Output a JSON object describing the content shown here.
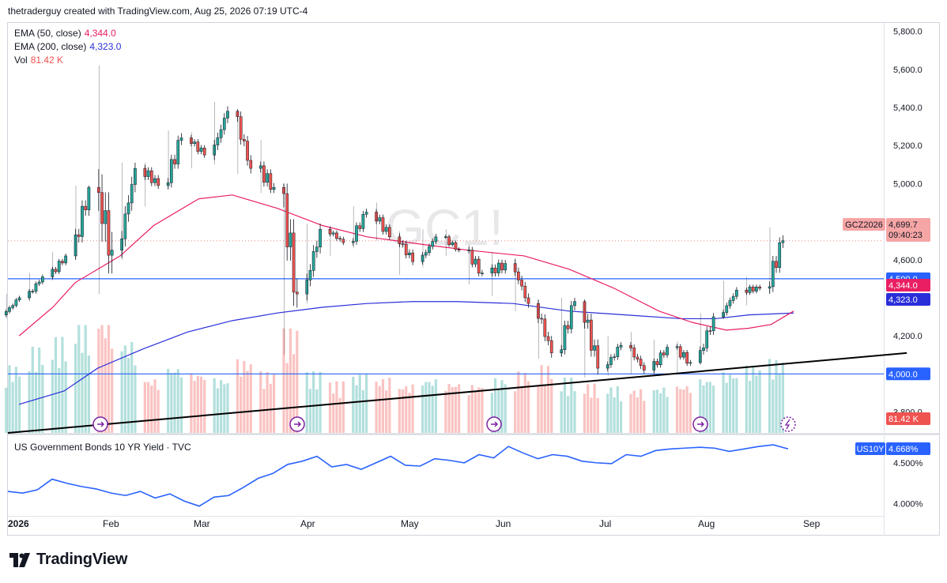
{
  "header": {
    "attribution": "thetraderguy created with TradingView.com, Aug 25, 2026 07:19 UTC-4"
  },
  "legend": {
    "ema50_label": "EMA (50, close)",
    "ema50_value": "4,344.0",
    "ema200_label": "EMA (200, close)",
    "ema200_value": "4,323.0",
    "vol_label": "Vol",
    "vol_value": "81.42 K"
  },
  "watermark": "GC1!",
  "sub_legend": "US Government Bonds 10 YR Yield · TVC",
  "logo_text": "TradingView",
  "colors": {
    "up": "#26a69a",
    "down": "#ef5350",
    "ema50": "#e91e63",
    "ema200": "#2a2ed8",
    "hline": "#2962ff",
    "yield": "#2962ff"
  },
  "chart_data": [
    {
      "type": "candlestick",
      "symbol_badge": "GCZ2026",
      "price_badge": "4,699.7",
      "countdown": "09:40:23",
      "y_ticks": [
        "5,800.0",
        "5,600.0",
        "5,400.0",
        "5,200.0",
        "5,000.0",
        "4,800.0",
        "4,600.0",
        "4,400.0",
        "4,200.0",
        "3,800.0"
      ],
      "ylim": [
        3690,
        5840
      ],
      "x_ticks": [
        "2026",
        "Feb",
        "Mar",
        "Apr",
        "May",
        "Jun",
        "Jul",
        "Aug",
        "Sep"
      ],
      "horizontal_lines": [
        {
          "value": 4500.0,
          "label": "4,500.0"
        },
        {
          "value": 4000.0,
          "label": "4,000.0"
        }
      ],
      "ema50_badge": "4,344.0",
      "ema200_badge": "4,323.0",
      "volume_badge": "81.42 K",
      "trendline": {
        "from": [
          "2026-01-01",
          3690
        ],
        "to": [
          "2026-09-30",
          4110
        ]
      },
      "ohlc_weekly": [
        {
          "d": "2026-01-02",
          "o": 4310,
          "h": 4420,
          "l": 4290,
          "c": 4400
        },
        {
          "d": "2026-01-09",
          "o": 4400,
          "h": 4530,
          "l": 4380,
          "c": 4510
        },
        {
          "d": "2026-01-16",
          "o": 4510,
          "h": 4640,
          "l": 4490,
          "c": 4620
        },
        {
          "d": "2026-01-23",
          "o": 4620,
          "h": 4990,
          "l": 4600,
          "c": 4980
        },
        {
          "d": "2026-01-30",
          "o": 4980,
          "h": 5620,
          "l": 4420,
          "c": 4650
        },
        {
          "d": "2026-02-06",
          "o": 4650,
          "h": 5110,
          "l": 4600,
          "c": 5080
        },
        {
          "d": "2026-02-13",
          "o": 5080,
          "h": 5110,
          "l": 4880,
          "c": 4990
        },
        {
          "d": "2026-02-20",
          "o": 4990,
          "h": 5280,
          "l": 4970,
          "c": 5240
        },
        {
          "d": "2026-02-27",
          "o": 5240,
          "h": 5270,
          "l": 5080,
          "c": 5150
        },
        {
          "d": "2026-03-06",
          "o": 5150,
          "h": 5430,
          "l": 5100,
          "c": 5380
        },
        {
          "d": "2026-03-13",
          "o": 5380,
          "h": 5390,
          "l": 5050,
          "c": 5080
        },
        {
          "d": "2026-03-20",
          "o": 5080,
          "h": 5230,
          "l": 4950,
          "c": 4980
        },
        {
          "d": "2026-03-27",
          "o": 4980,
          "h": 5000,
          "l": 4100,
          "c": 4420
        },
        {
          "d": "2026-04-03",
          "o": 4420,
          "h": 4790,
          "l": 4370,
          "c": 4760
        },
        {
          "d": "2026-04-10",
          "o": 4760,
          "h": 4780,
          "l": 4620,
          "c": 4690
        },
        {
          "d": "2026-04-17",
          "o": 4690,
          "h": 4880,
          "l": 4660,
          "c": 4850
        },
        {
          "d": "2026-04-24",
          "o": 4850,
          "h": 4900,
          "l": 4700,
          "c": 4720
        },
        {
          "d": "2026-05-01",
          "o": 4720,
          "h": 4750,
          "l": 4520,
          "c": 4590
        },
        {
          "d": "2026-05-08",
          "o": 4590,
          "h": 4760,
          "l": 4560,
          "c": 4720
        },
        {
          "d": "2026-05-15",
          "o": 4720,
          "h": 4760,
          "l": 4620,
          "c": 4650
        },
        {
          "d": "2026-05-22",
          "o": 4650,
          "h": 4680,
          "l": 4470,
          "c": 4530
        },
        {
          "d": "2026-05-29",
          "o": 4530,
          "h": 4640,
          "l": 4410,
          "c": 4580
        },
        {
          "d": "2026-06-05",
          "o": 4580,
          "h": 4610,
          "l": 4330,
          "c": 4370
        },
        {
          "d": "2026-06-12",
          "o": 4370,
          "h": 4390,
          "l": 4080,
          "c": 4110
        },
        {
          "d": "2026-06-19",
          "o": 4110,
          "h": 4400,
          "l": 4090,
          "c": 4380
        },
        {
          "d": "2026-06-26",
          "o": 4380,
          "h": 4390,
          "l": 3980,
          "c": 4030
        },
        {
          "d": "2026-07-03",
          "o": 4030,
          "h": 4200,
          "l": 3990,
          "c": 4150
        },
        {
          "d": "2026-07-10",
          "o": 4150,
          "h": 4220,
          "l": 4000,
          "c": 4020
        },
        {
          "d": "2026-07-17",
          "o": 4020,
          "h": 4180,
          "l": 3990,
          "c": 4140
        },
        {
          "d": "2026-07-24",
          "o": 4140,
          "h": 4170,
          "l": 4000,
          "c": 4060
        },
        {
          "d": "2026-07-31",
          "o": 4060,
          "h": 4320,
          "l": 4050,
          "c": 4300
        },
        {
          "d": "2026-08-07",
          "o": 4300,
          "h": 4490,
          "l": 4290,
          "c": 4440
        },
        {
          "d": "2026-08-14",
          "o": 4440,
          "h": 4510,
          "l": 4360,
          "c": 4450
        },
        {
          "d": "2026-08-21",
          "o": 4450,
          "h": 4770,
          "l": 4420,
          "c": 4700
        }
      ],
      "ema50_points": [
        [
          1,
          4200
        ],
        [
          4,
          4350
        ],
        [
          6,
          4480
        ],
        [
          10,
          4620
        ],
        [
          13,
          4780
        ],
        [
          17,
          4920
        ],
        [
          20,
          4940
        ],
        [
          24,
          4870
        ],
        [
          28,
          4780
        ],
        [
          32,
          4720
        ],
        [
          37,
          4680
        ],
        [
          41,
          4650
        ],
        [
          46,
          4620
        ],
        [
          50,
          4550
        ],
        [
          54,
          4450
        ],
        [
          58,
          4330
        ],
        [
          61,
          4270
        ],
        [
          64,
          4230
        ],
        [
          66,
          4240
        ],
        [
          68,
          4260
        ],
        [
          70,
          4330
        ]
      ],
      "ema200_points": [
        [
          1,
          3840
        ],
        [
          5,
          3910
        ],
        [
          8,
          4030
        ],
        [
          12,
          4130
        ],
        [
          16,
          4220
        ],
        [
          20,
          4280
        ],
        [
          24,
          4320
        ],
        [
          28,
          4350
        ],
        [
          32,
          4370
        ],
        [
          36,
          4380
        ],
        [
          40,
          4380
        ],
        [
          45,
          4370
        ],
        [
          50,
          4330
        ],
        [
          55,
          4310
        ],
        [
          60,
          4290
        ],
        [
          63,
          4290
        ],
        [
          66,
          4310
        ],
        [
          70,
          4320
        ]
      ],
      "volume_relative": [
        0.55,
        0.7,
        0.78,
        0.9,
        1.0,
        0.75,
        0.45,
        0.55,
        0.5,
        0.45,
        0.6,
        0.5,
        0.85,
        0.5,
        0.42,
        0.48,
        0.45,
        0.4,
        0.45,
        0.42,
        0.4,
        0.45,
        0.5,
        0.55,
        0.45,
        0.4,
        0.38,
        0.36,
        0.38,
        0.4,
        0.45,
        0.5,
        0.55,
        0.6
      ]
    },
    {
      "type": "line",
      "series_name": "US Government Bonds 10 YR Yield · TVC",
      "badge_symbol": "US10Y",
      "badge_value": "4.668%",
      "y_ticks": [
        "4.500%",
        "4.000%"
      ],
      "ylim": [
        3.88,
        4.75
      ],
      "values": [
        4.15,
        4.13,
        4.17,
        4.3,
        4.25,
        4.21,
        4.18,
        4.13,
        4.1,
        4.15,
        4.07,
        4.12,
        4.03,
        3.97,
        4.08,
        4.1,
        4.2,
        4.31,
        4.37,
        4.48,
        4.52,
        4.58,
        4.45,
        4.48,
        4.42,
        4.5,
        4.58,
        4.47,
        4.46,
        4.55,
        4.53,
        4.5,
        4.6,
        4.56,
        4.7,
        4.62,
        4.55,
        4.6,
        4.58,
        4.52,
        4.5,
        4.49,
        4.6,
        4.58,
        4.65,
        4.67,
        4.68,
        4.69,
        4.68,
        4.64,
        4.67,
        4.7,
        4.72,
        4.67
      ]
    }
  ]
}
